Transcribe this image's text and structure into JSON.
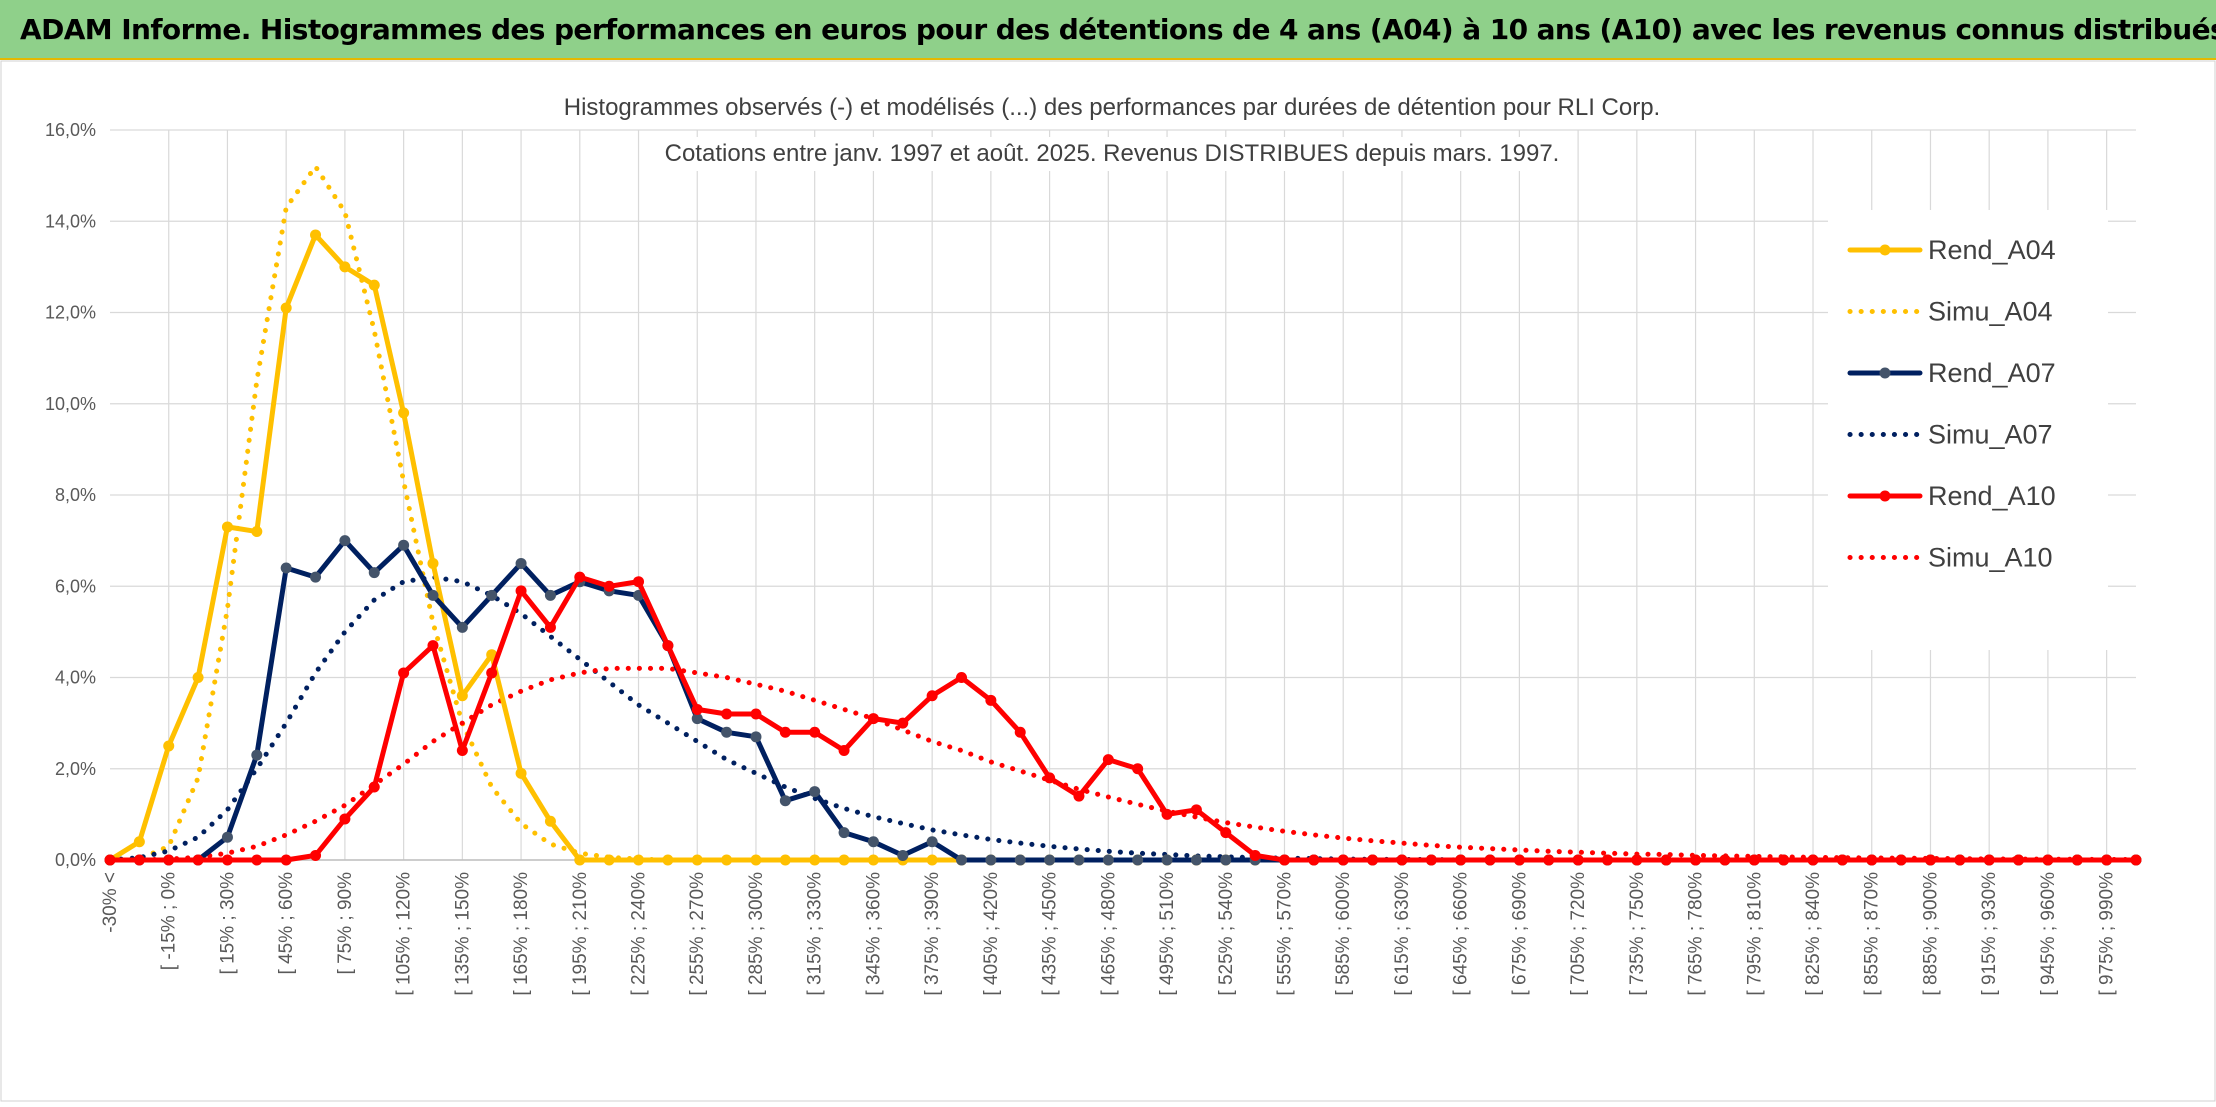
{
  "header": {
    "title": "ADAM Informe. Histogrammes des performances en euros pour des détentions de 4 ans (A04) à 10 ans (A10) avec les revenus connus distribués"
  },
  "chart_data": {
    "type": "line",
    "title": "Histogrammes observés (-) et modélisés (...) des performances par durées de détention pour RLI Corp.",
    "subtitle": "Cotations entre janv. 1997 et août. 2025. Revenus DISTRIBUES depuis mars. 1997.",
    "xlabel": "",
    "ylabel": "",
    "ylim": [
      0,
      16
    ],
    "yticks": [
      "0,0%",
      "2,0%",
      "4,0%",
      "6,0%",
      "8,0%",
      "10,0%",
      "12,0%",
      "14,0%",
      "16,0%"
    ],
    "grid": true,
    "legend_position": "right",
    "x_tick_labels": [
      "-30% <",
      "[ -15% ; 0%",
      "[ 15% ; 30%",
      "[ 45% ; 60%",
      "[ 75% ; 90%",
      "[ 105% ; 120%",
      "[ 135% ; 150%",
      "[ 165% ; 180%",
      "[ 195% ; 210%",
      "[ 225% ; 240%",
      "[ 255% ; 270%",
      "[ 285% ; 300%",
      "[ 315% ; 330%",
      "[ 345% ; 360%",
      "[ 375% ; 390%",
      "[ 405% ; 420%",
      "[ 435% ; 450%",
      "[ 465% ; 480%",
      "[ 495% ; 510%",
      "[ 525% ; 540%",
      "[ 555% ; 570%",
      "[ 585% ; 600%",
      "[ 615% ; 630%",
      "[ 645% ; 660%",
      "[ 675% ; 690%",
      "[ 705% ; 720%",
      "[ 735% ; 750%",
      "[ 765% ; 780%",
      "[ 795% ; 810%",
      "[ 825% ; 840%",
      "[ 855% ; 870%",
      "[ 885% ; 900%",
      "[ 915% ; 930%",
      "[ 945% ; 960%",
      "[ 975% ; 990%"
    ],
    "series": [
      {
        "name": "Rend_A04",
        "style": "solid",
        "color": "#ffc000",
        "values": [
          0,
          0.4,
          2.5,
          4.0,
          7.3,
          7.2,
          12.1,
          13.7,
          13.0,
          12.6,
          9.8,
          6.5,
          3.6,
          4.5,
          1.9,
          0.85,
          0,
          0,
          0,
          0,
          0,
          0,
          0,
          0,
          0,
          0,
          0,
          0,
          0,
          0,
          0,
          0,
          0,
          0,
          0,
          0,
          0,
          0,
          0,
          0,
          0,
          0,
          0,
          0,
          0,
          0,
          0,
          0,
          0,
          0,
          0,
          0,
          0,
          0,
          0,
          0,
          0,
          0,
          0,
          0,
          0,
          0,
          0,
          0,
          0,
          0,
          0,
          0,
          0,
          0
        ]
      },
      {
        "name": "Simu_A04",
        "style": "dotted",
        "color": "#ffc000",
        "values": [
          0,
          0.02,
          0.3,
          1.8,
          5.5,
          10.5,
          14.3,
          15.2,
          14.2,
          11.6,
          8.3,
          5.2,
          3.0,
          1.6,
          0.8,
          0.35,
          0.15,
          0.06,
          0.02,
          0,
          0,
          0,
          0,
          0,
          0,
          0,
          0,
          0,
          0,
          0,
          0,
          0,
          0,
          0,
          0,
          0,
          0,
          0,
          0,
          0,
          0,
          0,
          0,
          0,
          0,
          0,
          0,
          0,
          0,
          0,
          0,
          0,
          0,
          0,
          0,
          0,
          0,
          0,
          0,
          0,
          0,
          0,
          0,
          0,
          0,
          0,
          0,
          0,
          0,
          0
        ]
      },
      {
        "name": "Rend_A07",
        "style": "solid",
        "color": "#002060",
        "values": [
          0,
          0,
          0,
          0,
          0.5,
          2.3,
          6.4,
          6.2,
          7.0,
          6.3,
          6.9,
          5.8,
          5.1,
          5.8,
          6.5,
          5.8,
          6.1,
          5.9,
          5.8,
          4.7,
          3.1,
          2.8,
          2.7,
          1.3,
          1.5,
          0.6,
          0.4,
          0.1,
          0.4,
          0,
          0,
          0,
          0,
          0,
          0,
          0,
          0,
          0,
          0,
          0,
          0,
          0,
          0,
          0,
          0,
          0,
          0,
          0,
          0,
          0,
          0,
          0,
          0,
          0,
          0,
          0,
          0,
          0,
          0,
          0,
          0,
          0,
          0,
          0,
          0,
          0,
          0,
          0,
          0,
          0
        ]
      },
      {
        "name": "Simu_A07",
        "style": "dotted",
        "color": "#002060",
        "values": [
          0,
          0.05,
          0.2,
          0.5,
          1.1,
          2.0,
          3.0,
          4.1,
          5.0,
          5.7,
          6.1,
          6.2,
          6.1,
          5.8,
          5.4,
          4.9,
          4.4,
          3.9,
          3.4,
          3.0,
          2.6,
          2.2,
          1.9,
          1.6,
          1.35,
          1.13,
          0.95,
          0.8,
          0.66,
          0.55,
          0.45,
          0.37,
          0.3,
          0.24,
          0.19,
          0.15,
          0.12,
          0.09,
          0.07,
          0.05,
          0.04,
          0.03,
          0.02,
          0.015,
          0.01,
          0.01,
          0,
          0,
          0,
          0,
          0,
          0,
          0,
          0,
          0,
          0,
          0,
          0,
          0,
          0,
          0,
          0,
          0,
          0,
          0,
          0,
          0,
          0,
          0,
          0
        ]
      },
      {
        "name": "Rend_A10",
        "style": "solid",
        "color": "#ff0000",
        "values": [
          0,
          0,
          0,
          0,
          0,
          0,
          0,
          0.1,
          0.9,
          1.6,
          4.1,
          4.7,
          2.4,
          4.1,
          5.9,
          5.1,
          6.2,
          6.0,
          6.1,
          4.7,
          3.3,
          3.2,
          3.2,
          2.8,
          2.8,
          2.4,
          3.1,
          3.0,
          3.6,
          4.0,
          3.5,
          2.8,
          1.8,
          1.4,
          2.2,
          2.0,
          1.0,
          1.1,
          0.6,
          0.1,
          0,
          0,
          0,
          0,
          0,
          0,
          0,
          0,
          0,
          0,
          0,
          0,
          0,
          0,
          0,
          0,
          0,
          0,
          0,
          0,
          0,
          0,
          0,
          0,
          0,
          0,
          0,
          0,
          0,
          0
        ]
      },
      {
        "name": "Simu_A10",
        "style": "dotted",
        "color": "#ff0000",
        "values": [
          0,
          0,
          0.02,
          0.06,
          0.15,
          0.3,
          0.55,
          0.85,
          1.2,
          1.65,
          2.1,
          2.6,
          3.0,
          3.4,
          3.7,
          3.95,
          4.1,
          4.2,
          4.2,
          4.2,
          4.1,
          4.0,
          3.85,
          3.7,
          3.5,
          3.3,
          3.1,
          2.85,
          2.6,
          2.4,
          2.15,
          1.95,
          1.75,
          1.55,
          1.38,
          1.22,
          1.07,
          0.94,
          0.82,
          0.72,
          0.63,
          0.55,
          0.48,
          0.42,
          0.37,
          0.32,
          0.28,
          0.25,
          0.22,
          0.19,
          0.17,
          0.15,
          0.13,
          0.12,
          0.1,
          0.09,
          0.08,
          0.07,
          0.06,
          0.05,
          0.045,
          0.04,
          0.035,
          0.03,
          0.025,
          0.02,
          0.018,
          0.015,
          0.012,
          0.01
        ]
      }
    ]
  }
}
